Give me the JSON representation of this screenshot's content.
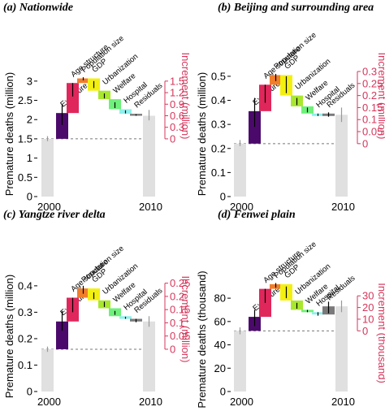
{
  "figure": {
    "increment_color": "#d4375c",
    "baseline_bar_color": "#e0e0e0",
    "step_colors": [
      "#4b0a6b",
      "#e0275b",
      "#f07e2a",
      "#f3f010",
      "#a8e72e",
      "#6ef07a",
      "#8ff0ec",
      "#7a7a7a"
    ],
    "categories": [
      "Exposure",
      "Age structure",
      "Population size",
      "GDP",
      "Urbanization",
      "Welfare",
      "Hospital",
      "Residuals"
    ]
  },
  "chart_data": [
    {
      "type": "waterfall",
      "title": "(a) Nationwide",
      "ylabel": "Premature deaths (million)",
      "ylabel2": "Increment (million)",
      "x_tick_labels": [
        "2000",
        "2010"
      ],
      "ylim": [
        0,
        3.25
      ],
      "yticks": [
        0,
        0.5,
        1,
        1.5,
        2,
        2.5,
        3
      ],
      "ytick_labels": [
        "0",
        "0.5",
        "1",
        "1.5",
        "2",
        "2.5",
        "3"
      ],
      "ylim2": [
        -1.5,
        1.75
      ],
      "yticks2": [
        0,
        0.3,
        0.6,
        0.9,
        1.2,
        1.5
      ],
      "ytick2_labels": [
        "0",
        "0.3",
        "0.6",
        "0.9",
        "1.2",
        "1.5"
      ],
      "baseline_2000": 1.5,
      "baseline_2000_err": [
        1.44,
        1.57
      ],
      "steps": [
        {
          "category": "Exposure",
          "from": 1.5,
          "to": 2.17,
          "err": [
            1.86,
            2.4
          ]
        },
        {
          "category": "Age structure",
          "from": 2.17,
          "to": 2.95,
          "err": [
            2.6,
            2.95
          ]
        },
        {
          "category": "Population size",
          "from": 2.95,
          "to": 3.07,
          "err": [
            3.02,
            3.1
          ]
        },
        {
          "category": "GDP",
          "from": 3.07,
          "to": 2.75,
          "err": [
            2.82,
            3.0
          ]
        },
        {
          "category": "Urbanization",
          "from": 2.75,
          "to": 2.53,
          "err": [
            2.55,
            2.68
          ]
        },
        {
          "category": "Welfare",
          "from": 2.53,
          "to": 2.27,
          "err": [
            2.3,
            2.45
          ]
        },
        {
          "category": "Hospital",
          "from": 2.27,
          "to": 2.15,
          "err": [
            2.16,
            2.24
          ]
        },
        {
          "category": "Residuals",
          "from": 2.15,
          "to": 2.1,
          "err": [
            2.1,
            2.14
          ]
        }
      ],
      "value_2010": 2.1,
      "value_2010_err": [
        1.98,
        2.25
      ],
      "xlabel": ""
    },
    {
      "type": "waterfall",
      "title": "(b) Beijing and surrounding area",
      "ylabel": "Premature deaths (million)",
      "ylabel2": "Increment (million)",
      "x_tick_labels": [
        "2000",
        "2010"
      ],
      "ylim": [
        0,
        0.52
      ],
      "yticks": [
        0,
        0.1,
        0.2,
        0.3,
        0.4,
        0.5
      ],
      "ytick_labels": [
        "0",
        "0.1",
        "0.2",
        "0.3",
        "0.4",
        "0.5"
      ],
      "ylim2": [
        -0.22,
        0.3
      ],
      "yticks2": [
        0,
        0.05,
        0.1,
        0.15,
        0.2,
        0.25,
        0.3
      ],
      "ytick2_labels": [
        "0",
        "0.05",
        "0.1",
        "0.15",
        "0.2",
        "0.25",
        "0.3"
      ],
      "baseline_2000": 0.22,
      "baseline_2000_err": [
        0.21,
        0.235
      ],
      "steps": [
        {
          "category": "Exposure",
          "from": 0.22,
          "to": 0.355,
          "err": [
            0.29,
            0.41
          ]
        },
        {
          "category": "Age structure",
          "from": 0.355,
          "to": 0.465,
          "err": [
            0.39,
            0.465
          ]
        },
        {
          "category": "Population size",
          "from": 0.465,
          "to": 0.505,
          "err": [
            0.48,
            0.51
          ]
        },
        {
          "category": "GDP",
          "from": 0.505,
          "to": 0.42,
          "err": [
            0.43,
            0.5
          ]
        },
        {
          "category": "Urbanization",
          "from": 0.42,
          "to": 0.375,
          "err": [
            0.38,
            0.41
          ]
        },
        {
          "category": "Welfare",
          "from": 0.375,
          "to": 0.345,
          "err": [
            0.35,
            0.37
          ]
        },
        {
          "category": "Hospital",
          "from": 0.345,
          "to": 0.335,
          "err": [
            0.335,
            0.345
          ]
        },
        {
          "category": "Residuals",
          "from": 0.335,
          "to": 0.345,
          "err": [
            0.332,
            0.35
          ]
        }
      ],
      "value_2010": 0.34,
      "value_2010_err": [
        0.31,
        0.37
      ],
      "xlabel": ""
    },
    {
      "type": "waterfall",
      "title": "(c) Yangtze river delta",
      "ylabel": "Premature deaths (million)",
      "ylabel2": "Increment (million)",
      "x_tick_labels": [
        "2000",
        "2010"
      ],
      "ylim": [
        0,
        0.415
      ],
      "yticks": [
        0,
        0.1,
        0.2,
        0.3,
        0.4
      ],
      "ytick_labels": [
        "0",
        "0.1",
        "0.2",
        "0.3",
        "0.4"
      ],
      "ylim2": [
        -0.16,
        0.255
      ],
      "yticks2": [
        0,
        0.05,
        0.1,
        0.15,
        0.2,
        0.25
      ],
      "ytick2_labels": [
        "0",
        "0.05",
        "0.1",
        "0.15",
        "0.2",
        "0.25"
      ],
      "baseline_2000": 0.16,
      "baseline_2000_err": [
        0.15,
        0.17
      ],
      "steps": [
        {
          "category": "Exposure",
          "from": 0.16,
          "to": 0.265,
          "err": [
            0.23,
            0.305
          ]
        },
        {
          "category": "Age structure",
          "from": 0.265,
          "to": 0.355,
          "err": [
            0.3,
            0.355
          ]
        },
        {
          "category": "Population size",
          "from": 0.355,
          "to": 0.39,
          "err": [
            0.37,
            0.4
          ]
        },
        {
          "category": "GDP",
          "from": 0.39,
          "to": 0.345,
          "err": [
            0.35,
            0.375
          ]
        },
        {
          "category": "Urbanization",
          "from": 0.345,
          "to": 0.315,
          "err": [
            0.32,
            0.34
          ]
        },
        {
          "category": "Welfare",
          "from": 0.315,
          "to": 0.285,
          "err": [
            0.29,
            0.305
          ]
        },
        {
          "category": "Hospital",
          "from": 0.285,
          "to": 0.275,
          "err": [
            0.275,
            0.283
          ]
        },
        {
          "category": "Residuals",
          "from": 0.275,
          "to": 0.265,
          "err": [
            0.262,
            0.275
          ]
        }
      ],
      "value_2010": 0.265,
      "value_2010_err": [
        0.245,
        0.285
      ],
      "xlabel": ""
    },
    {
      "type": "waterfall",
      "title": "(d) Fenwei plain",
      "ylabel": "Premature deaths (thousand)",
      "ylabel2": "Increment (thousand)",
      "x_tick_labels": [
        "2000",
        "2010"
      ],
      "ylim": [
        0,
        94
      ],
      "yticks": [
        0,
        20,
        40,
        60,
        80
      ],
      "ytick_labels": [
        "0",
        "20",
        "40",
        "60",
        "80"
      ],
      "ylim2": [
        -52,
        42
      ],
      "yticks2": [
        0,
        10,
        20,
        30
      ],
      "ytick2_labels": [
        "0",
        "10",
        "20",
        "30"
      ],
      "baseline_2000": 52,
      "baseline_2000_err": [
        49,
        55
      ],
      "steps": [
        {
          "category": "Exposure",
          "from": 52,
          "to": 64,
          "err": [
            56,
            70
          ]
        },
        {
          "category": "Age structure",
          "from": 64,
          "to": 88,
          "err": [
            76,
            88
          ]
        },
        {
          "category": "Population size",
          "from": 88,
          "to": 92,
          "err": [
            89,
            93
          ]
        },
        {
          "category": "GDP",
          "from": 92,
          "to": 78,
          "err": [
            80,
            90
          ]
        },
        {
          "category": "Urbanization",
          "from": 78,
          "to": 70,
          "err": [
            71,
            76
          ]
        },
        {
          "category": "Welfare",
          "from": 70,
          "to": 68,
          "err": [
            68,
            70
          ]
        },
        {
          "category": "Hospital",
          "from": 68,
          "to": 66,
          "err": [
            65,
            68
          ]
        },
        {
          "category": "Residuals",
          "from": 66,
          "to": 73,
          "err": [
            67,
            77
          ]
        }
      ],
      "value_2010": 73,
      "value_2010_err": [
        68,
        78
      ],
      "xlabel": ""
    }
  ]
}
